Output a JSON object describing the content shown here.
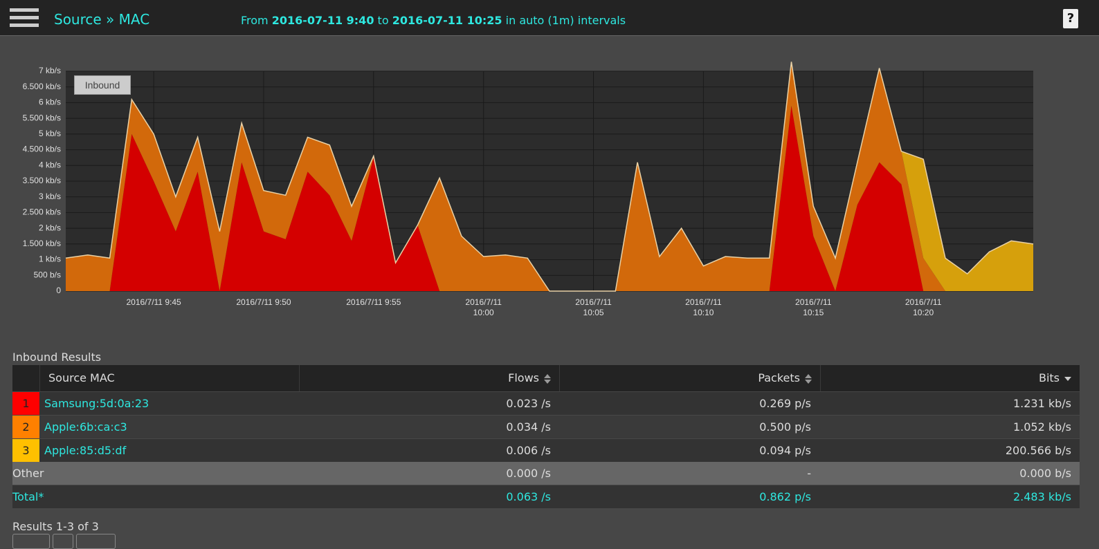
{
  "header": {
    "title": "Source » MAC",
    "range": {
      "prefix": "From",
      "start": "2016-07-11 9:40",
      "middle": "to",
      "end": "2016-07-11 10:25",
      "suffix": "in auto (1m) intervals"
    },
    "help": "?"
  },
  "chart_data": {
    "type": "stacked_area",
    "label": "Inbound",
    "categories": [
      null,
      null,
      null,
      null,
      "2016/7/11 9:45",
      null,
      null,
      null,
      null,
      "2016/7/11 9:50",
      null,
      null,
      null,
      null,
      "2016/7/11 9:55",
      null,
      null,
      null,
      null,
      "2016/7/11 10:00",
      null,
      null,
      null,
      null,
      "2016/7/11 10:05",
      null,
      null,
      null,
      null,
      "2016/7/11 10:10",
      null,
      null,
      null,
      null,
      "2016/7/11 10:15",
      null,
      null,
      null,
      null,
      "2016/7/11 10:20",
      null,
      null,
      null,
      null,
      null
    ],
    "series": [
      {
        "color": "#d40000",
        "values": [
          0,
          0,
          0,
          5000,
          3500,
          1900,
          3800,
          0,
          4100,
          1900,
          1650,
          3800,
          3050,
          1600,
          4250,
          900,
          2100,
          0,
          0,
          0,
          0,
          0,
          0,
          0,
          0,
          0,
          0,
          0,
          0,
          0,
          0,
          0,
          0,
          5900,
          1750,
          0,
          2750,
          4100,
          3400,
          0,
          0,
          0,
          0,
          0,
          0
        ]
      },
      {
        "color": "#d2690b",
        "values": [
          1050,
          1150,
          1050,
          1100,
          1500,
          1100,
          1100,
          1900,
          1250,
          1300,
          1400,
          1100,
          1600,
          1100,
          50,
          0,
          0,
          3600,
          1750,
          1100,
          1150,
          1050,
          0,
          0,
          0,
          0,
          4100,
          1100,
          2000,
          800,
          1100,
          1050,
          1050,
          1400,
          950,
          1050,
          1350,
          3000,
          1050,
          1050,
          0,
          0,
          0,
          0,
          0
        ]
      },
      {
        "color": "#d6a00c",
        "values": [
          0,
          0,
          0,
          0,
          0,
          0,
          0,
          0,
          0,
          0,
          0,
          0,
          0,
          0,
          0,
          0,
          0,
          0,
          0,
          0,
          0,
          0,
          0,
          0,
          0,
          0,
          0,
          0,
          0,
          0,
          0,
          0,
          0,
          0,
          0,
          0,
          0,
          0,
          0,
          3150,
          1050,
          550,
          1250,
          1600,
          1500
        ]
      }
    ],
    "ylim": [
      0,
      7000
    ],
    "yticks": [
      0,
      {
        "value": 500,
        "label": "500 b/s"
      },
      {
        "value": 1000,
        "label": "1 kb/s"
      },
      {
        "value": 1500,
        "label": "1.500 kb/s"
      },
      {
        "value": 2000,
        "label": "2 kb/s"
      },
      {
        "value": 2500,
        "label": "2.500 kb/s"
      },
      {
        "value": 3000,
        "label": "3 kb/s"
      },
      {
        "value": 3500,
        "label": "3.500 kb/s"
      },
      {
        "value": 4000,
        "label": "4 kb/s"
      },
      {
        "value": 4500,
        "label": "4.500 kb/s"
      },
      {
        "value": 5000,
        "label": "5 kb/s"
      },
      {
        "value": 5500,
        "label": "5.500 kb/s"
      },
      {
        "value": 6000,
        "label": "6 kb/s"
      },
      {
        "value": 6500,
        "label": "6.500 kb/s"
      },
      {
        "value": 7000,
        "label": "7 kb/s"
      }
    ],
    "grid": true
  },
  "table": {
    "title": "Inbound Results",
    "columns": [
      "Source MAC",
      "Flows",
      "Packets",
      "Bits"
    ],
    "rows": [
      {
        "rank": "1",
        "color": "#ff0000",
        "name": "Samsung:5d:0a:23",
        "flows": "0.023 /s",
        "packets": "0.269 p/s",
        "bits": "1.231 kb/s"
      },
      {
        "rank": "2",
        "color": "#ff8000",
        "name": "Apple:6b:ca:c3",
        "flows": "0.034 /s",
        "packets": "0.500 p/s",
        "bits": "1.052 kb/s"
      },
      {
        "rank": "3",
        "color": "#ffc000",
        "name": "Apple:85:d5:df",
        "flows": "0.006 /s",
        "packets": "0.094 p/s",
        "bits": "200.566 b/s"
      }
    ],
    "other": {
      "name": "Other",
      "flows": "0.000 /s",
      "packets": "-",
      "bits": "0.000 b/s"
    },
    "total": {
      "name": "Total*",
      "flows": "0.063 /s",
      "packets": "0.862 p/s",
      "bits": "2.483 kb/s"
    },
    "footer": "Results 1-3 of 3"
  }
}
